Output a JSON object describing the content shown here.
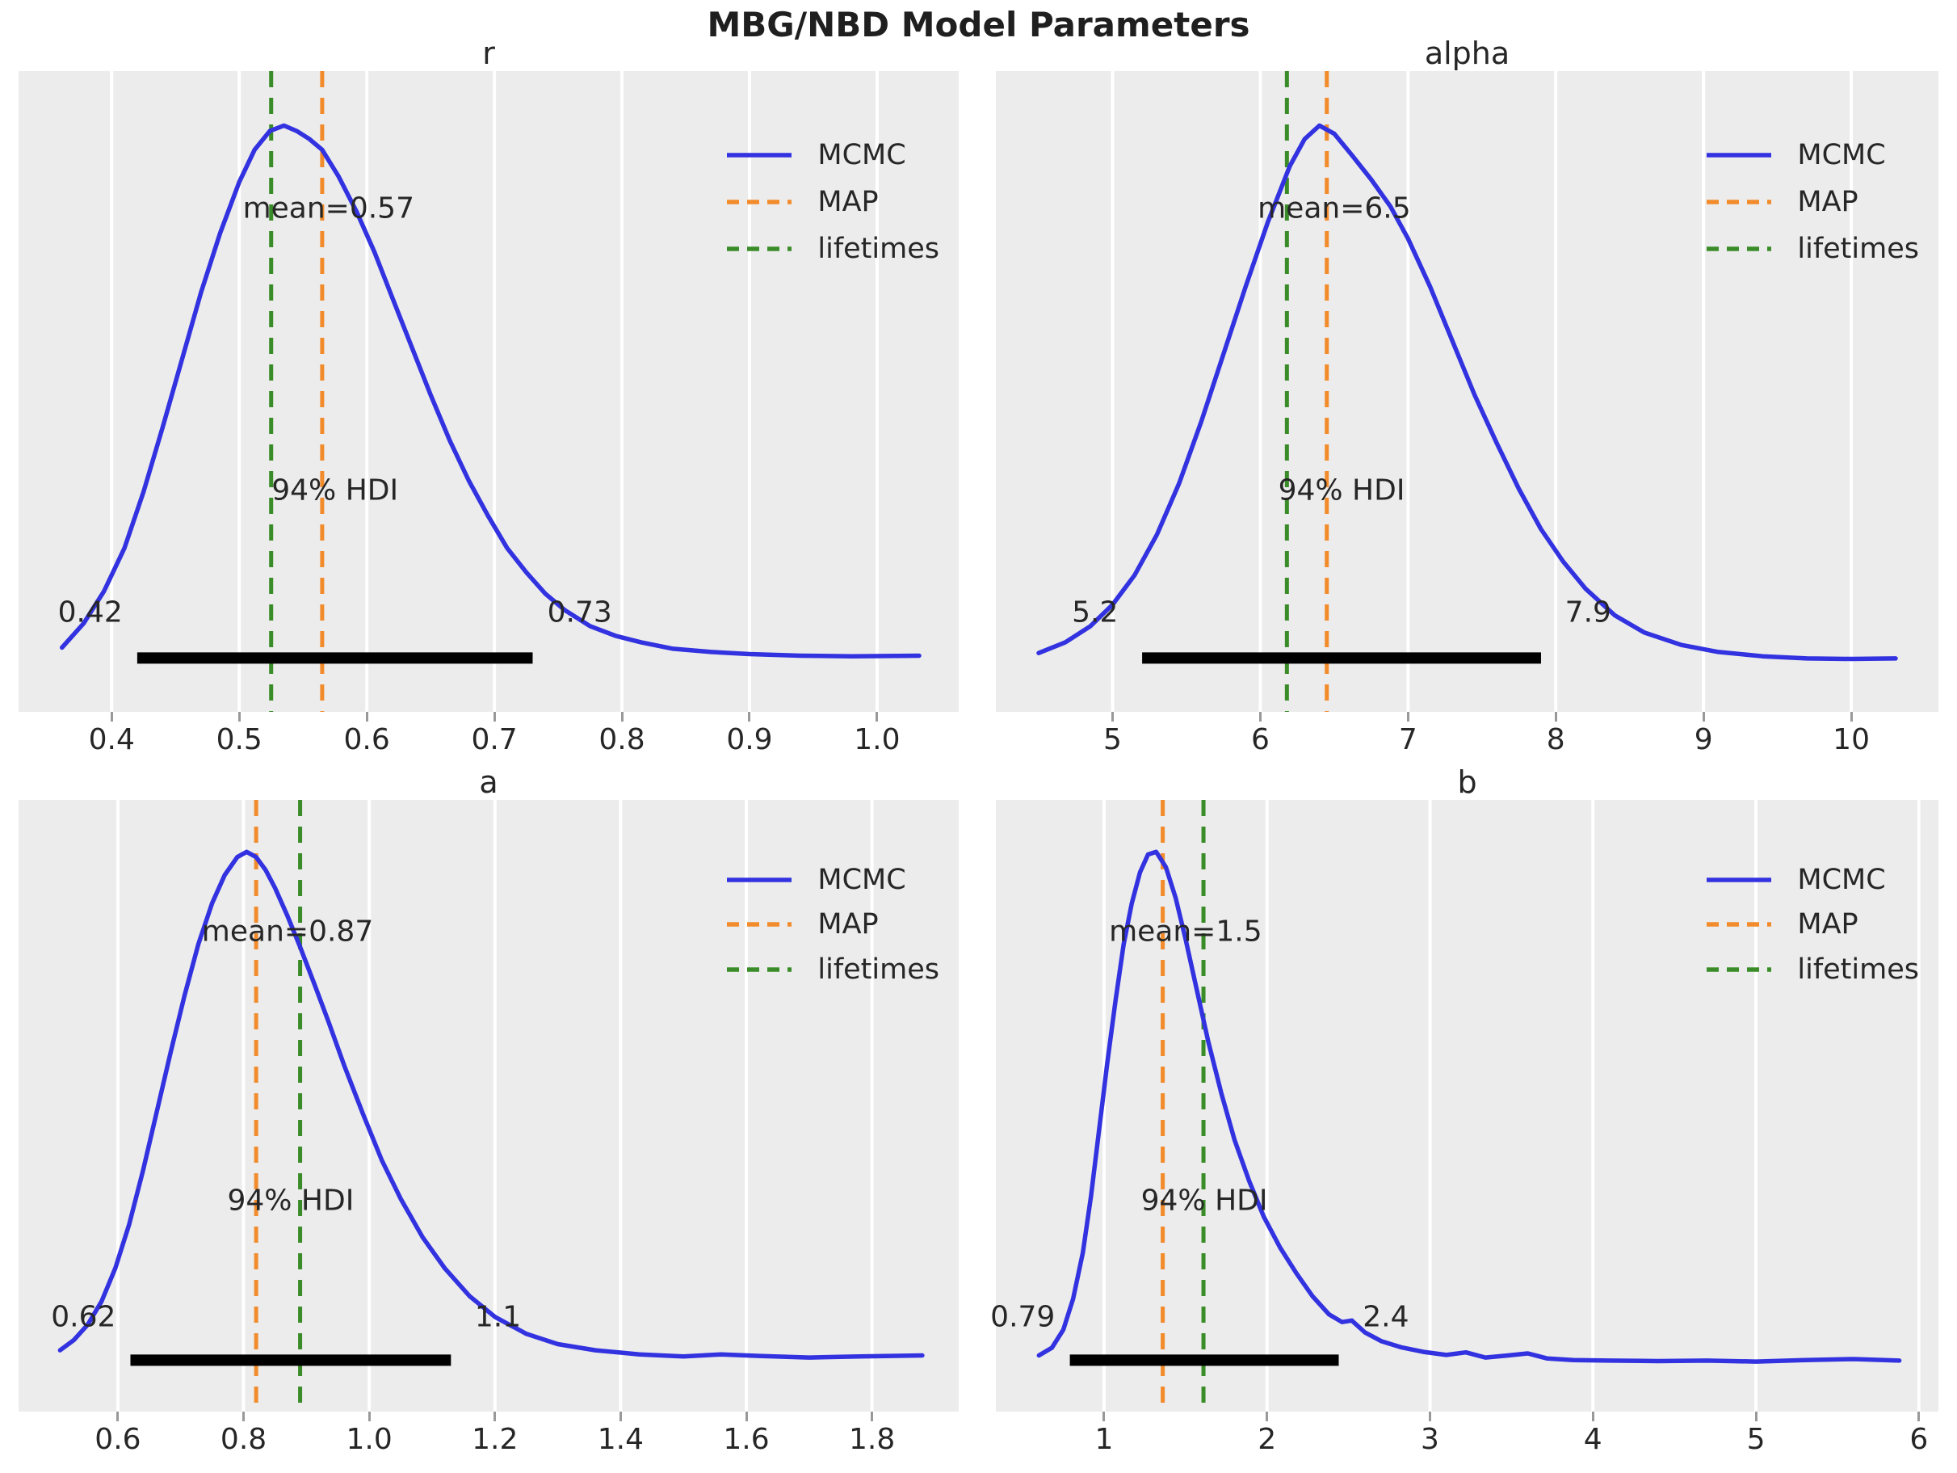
{
  "figure": {
    "title": "MBG/NBD Model Parameters",
    "legend": [
      {
        "label": "MCMC",
        "style": "solid",
        "color": "#3232e0"
      },
      {
        "label": "MAP",
        "style": "dashed",
        "color": "#f28b2b"
      },
      {
        "label": "lifetimes",
        "style": "dashed",
        "color": "#3a8c28"
      }
    ],
    "colors": {
      "curve": "#3232e0",
      "map_line": "#f28b2b",
      "lifetimes_line": "#3a8c28",
      "axes_background": "#ececec",
      "gridline": "#ffffff",
      "hdi_bar": "#000000",
      "text": "#262626",
      "tick_mark": "#999999"
    }
  },
  "chart_data": [
    {
      "type": "line",
      "title": "r",
      "mean": 0.57,
      "mean_label": "mean=0.57",
      "hdi_text": "94% HDI",
      "hdi": [
        0.42,
        0.73
      ],
      "hdi_lo_label": "0.42",
      "hdi_hi_label": "0.73",
      "map": 0.565,
      "lifetimes": 0.525,
      "xlim": [
        0.327,
        1.064
      ],
      "xticks": [
        0.4,
        0.5,
        0.6,
        0.7,
        0.8,
        0.9,
        1.0
      ],
      "xtick_labels": [
        "0.4",
        "0.5",
        "0.6",
        "0.7",
        "0.8",
        "0.9",
        "1.0"
      ],
      "legend_entries": [
        "MCMC",
        "MAP",
        "lifetimes"
      ],
      "kde": {
        "x": [
          0.361,
          0.378,
          0.394,
          0.41,
          0.425,
          0.44,
          0.455,
          0.47,
          0.485,
          0.5,
          0.512,
          0.524,
          0.535,
          0.545,
          0.555,
          0.565,
          0.578,
          0.592,
          0.606,
          0.62,
          0.635,
          0.65,
          0.665,
          0.68,
          0.695,
          0.71,
          0.725,
          0.74,
          0.755,
          0.775,
          0.795,
          0.815,
          0.84,
          0.87,
          0.9,
          0.94,
          0.98,
          1.033
        ],
        "y": [
          0.03,
          0.075,
          0.135,
          0.215,
          0.32,
          0.44,
          0.565,
          0.69,
          0.8,
          0.895,
          0.955,
          0.99,
          1.0,
          0.99,
          0.975,
          0.955,
          0.905,
          0.84,
          0.765,
          0.68,
          0.59,
          0.5,
          0.415,
          0.34,
          0.275,
          0.215,
          0.17,
          0.13,
          0.1,
          0.07,
          0.052,
          0.04,
          0.028,
          0.022,
          0.018,
          0.015,
          0.014,
          0.015
        ]
      }
    },
    {
      "type": "line",
      "title": "alpha",
      "mean": 6.5,
      "mean_label": "mean=6.5",
      "hdi_text": "94% HDI",
      "hdi": [
        5.2,
        7.9
      ],
      "hdi_lo_label": "5.2",
      "hdi_hi_label": "7.9",
      "map": 6.45,
      "lifetimes": 6.18,
      "xlim": [
        4.21,
        10.59
      ],
      "xticks": [
        5,
        6,
        7,
        8,
        9,
        10
      ],
      "xtick_labels": [
        "5",
        "6",
        "7",
        "8",
        "9",
        "10"
      ],
      "legend_entries": [
        "MCMC",
        "MAP",
        "lifetimes"
      ],
      "kde": {
        "x": [
          4.5,
          4.68,
          4.85,
          5.0,
          5.15,
          5.3,
          5.45,
          5.6,
          5.75,
          5.9,
          6.05,
          6.2,
          6.3,
          6.4,
          6.5,
          6.62,
          6.75,
          6.88,
          7.0,
          7.15,
          7.3,
          7.45,
          7.6,
          7.75,
          7.9,
          8.05,
          8.2,
          8.4,
          8.6,
          8.85,
          9.1,
          9.4,
          9.7,
          10.0,
          10.3
        ],
        "y": [
          0.02,
          0.04,
          0.07,
          0.11,
          0.165,
          0.24,
          0.335,
          0.45,
          0.575,
          0.7,
          0.82,
          0.925,
          0.975,
          1.0,
          0.985,
          0.945,
          0.9,
          0.85,
          0.79,
          0.7,
          0.6,
          0.5,
          0.41,
          0.325,
          0.25,
          0.19,
          0.14,
          0.09,
          0.058,
          0.035,
          0.022,
          0.014,
          0.01,
          0.009,
          0.01
        ]
      }
    },
    {
      "type": "line",
      "title": "a",
      "mean": 0.87,
      "mean_label": "mean=0.87",
      "hdi_text": "94% HDI",
      "hdi": [
        0.62,
        1.13
      ],
      "hdi_lo_label": "0.62",
      "hdi_hi_label": "1.1",
      "map": 0.82,
      "lifetimes": 0.89,
      "xlim": [
        0.442,
        1.938
      ],
      "xticks": [
        0.6,
        0.8,
        1.0,
        1.2,
        1.4,
        1.6,
        1.8
      ],
      "xtick_labels": [
        "0.6",
        "0.8",
        "1.0",
        "1.2",
        "1.4",
        "1.6",
        "1.8"
      ],
      "legend_entries": [
        "MCMC",
        "MAP",
        "lifetimes"
      ],
      "kde": {
        "x": [
          0.508,
          0.53,
          0.552,
          0.574,
          0.596,
          0.618,
          0.64,
          0.662,
          0.684,
          0.706,
          0.728,
          0.75,
          0.77,
          0.79,
          0.805,
          0.82,
          0.835,
          0.85,
          0.87,
          0.89,
          0.912,
          0.935,
          0.96,
          0.99,
          1.02,
          1.05,
          1.085,
          1.12,
          1.16,
          1.2,
          1.25,
          1.3,
          1.36,
          1.43,
          1.5,
          1.56,
          1.62,
          1.7,
          1.78,
          1.88
        ],
        "y": [
          0.03,
          0.05,
          0.08,
          0.125,
          0.19,
          0.275,
          0.38,
          0.495,
          0.61,
          0.72,
          0.82,
          0.9,
          0.955,
          0.99,
          1.0,
          0.99,
          0.965,
          0.93,
          0.875,
          0.815,
          0.745,
          0.67,
          0.585,
          0.49,
          0.4,
          0.325,
          0.25,
          0.19,
          0.135,
          0.095,
          0.062,
          0.042,
          0.03,
          0.022,
          0.018,
          0.022,
          0.019,
          0.016,
          0.018,
          0.02
        ]
      }
    },
    {
      "type": "line",
      "title": "b",
      "mean": 1.5,
      "mean_label": "mean=1.5",
      "hdi_text": "94% HDI",
      "hdi": [
        0.79,
        2.44
      ],
      "hdi_lo_label": "0.79",
      "hdi_hi_label": "2.4",
      "map": 1.36,
      "lifetimes": 1.61,
      "xlim": [
        0.336,
        6.12
      ],
      "xticks": [
        1,
        2,
        3,
        4,
        5,
        6
      ],
      "xtick_labels": [
        "1",
        "2",
        "3",
        "4",
        "5",
        "6"
      ],
      "legend_entries": [
        "MCMC",
        "MAP",
        "lifetimes"
      ],
      "kde": {
        "x": [
          0.6,
          0.68,
          0.75,
          0.81,
          0.87,
          0.92,
          0.97,
          1.02,
          1.07,
          1.12,
          1.17,
          1.22,
          1.27,
          1.32,
          1.38,
          1.44,
          1.5,
          1.57,
          1.64,
          1.72,
          1.8,
          1.89,
          1.98,
          2.08,
          2.18,
          2.28,
          2.38,
          2.46,
          2.52,
          2.6,
          2.7,
          2.82,
          2.96,
          3.1,
          3.22,
          3.34,
          3.48,
          3.6,
          3.72,
          3.88,
          4.1,
          4.4,
          4.7,
          5.0,
          5.3,
          5.6,
          5.88
        ],
        "y": [
          0.02,
          0.035,
          0.07,
          0.13,
          0.22,
          0.33,
          0.46,
          0.59,
          0.71,
          0.82,
          0.9,
          0.96,
          0.995,
          1.0,
          0.97,
          0.91,
          0.83,
          0.73,
          0.63,
          0.53,
          0.44,
          0.36,
          0.29,
          0.23,
          0.18,
          0.135,
          0.1,
          0.085,
          0.088,
          0.065,
          0.048,
          0.036,
          0.027,
          0.021,
          0.026,
          0.016,
          0.02,
          0.024,
          0.014,
          0.011,
          0.01,
          0.009,
          0.01,
          0.008,
          0.011,
          0.013,
          0.01
        ]
      }
    }
  ]
}
